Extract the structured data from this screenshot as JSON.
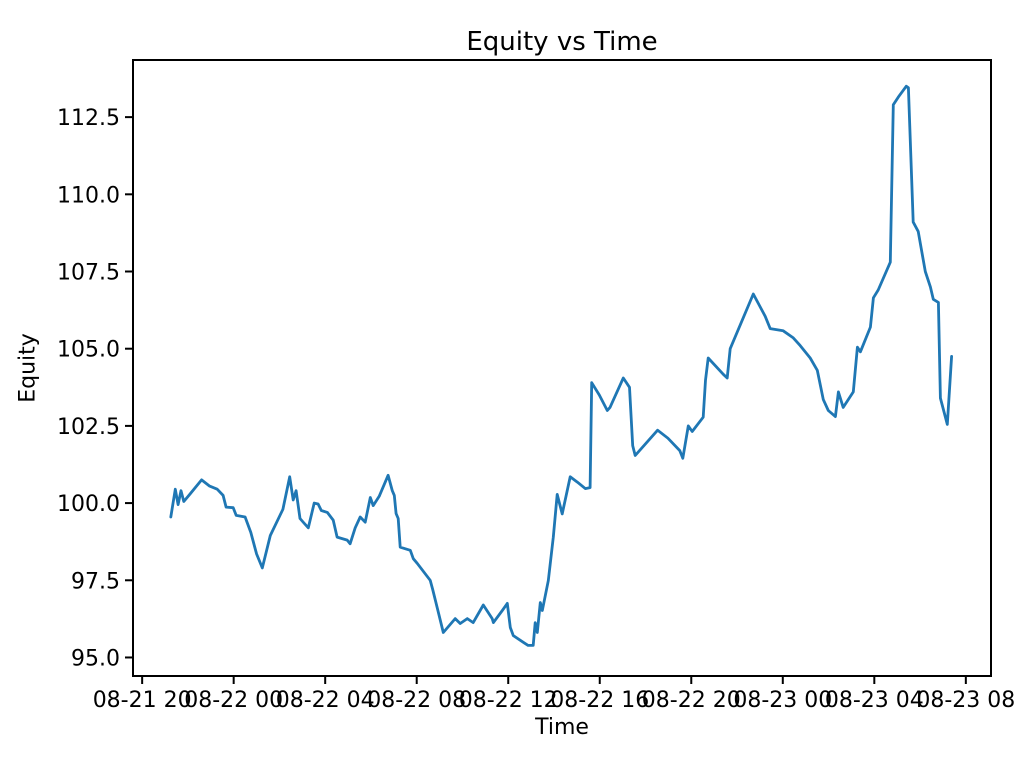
{
  "chart_data": {
    "type": "line",
    "title": "Equity vs Time",
    "xlabel": "Time",
    "ylabel": "Equity",
    "x_unit": "hours since 08-21 20:00",
    "xlim": [
      -0.4,
      37.1
    ],
    "ylim": [
      94.4,
      114.35
    ],
    "grid": false,
    "legend": "none",
    "line_color": "#1f77b4",
    "axis_color": "#000000",
    "x_ticks": [
      {
        "t": 0,
        "label": "08-21 20"
      },
      {
        "t": 4,
        "label": "08-22 00"
      },
      {
        "t": 8,
        "label": "08-22 04"
      },
      {
        "t": 12,
        "label": "08-22 08"
      },
      {
        "t": 16,
        "label": "08-22 12"
      },
      {
        "t": 20,
        "label": "08-22 16"
      },
      {
        "t": 24,
        "label": "08-22 20"
      },
      {
        "t": 28,
        "label": "08-23 00"
      },
      {
        "t": 32,
        "label": "08-23 04"
      },
      {
        "t": 36,
        "label": "08-23 08"
      }
    ],
    "y_ticks": [
      {
        "v": 95.0,
        "label": "95.0"
      },
      {
        "v": 97.5,
        "label": "97.5"
      },
      {
        "v": 100.0,
        "label": "100.0"
      },
      {
        "v": 102.5,
        "label": "102.5"
      },
      {
        "v": 105.0,
        "label": "105.0"
      },
      {
        "v": 107.5,
        "label": "107.5"
      },
      {
        "v": 110.0,
        "label": "110.0"
      },
      {
        "v": 112.5,
        "label": "112.5"
      }
    ],
    "series": [
      {
        "name": "Equity",
        "points": [
          [
            1.25,
            99.55
          ],
          [
            1.45,
            100.45
          ],
          [
            1.57,
            99.95
          ],
          [
            1.7,
            100.4
          ],
          [
            1.82,
            100.05
          ],
          [
            2.1,
            100.3
          ],
          [
            2.6,
            100.75
          ],
          [
            2.95,
            100.55
          ],
          [
            3.28,
            100.45
          ],
          [
            3.54,
            100.25
          ],
          [
            3.67,
            99.87
          ],
          [
            3.98,
            99.85
          ],
          [
            4.11,
            99.6
          ],
          [
            4.5,
            99.55
          ],
          [
            4.75,
            99.05
          ],
          [
            5.0,
            98.35
          ],
          [
            5.25,
            97.9
          ],
          [
            5.6,
            98.95
          ],
          [
            6.15,
            99.8
          ],
          [
            6.45,
            100.85
          ],
          [
            6.6,
            100.1
          ],
          [
            6.73,
            100.4
          ],
          [
            6.9,
            99.5
          ],
          [
            7.05,
            99.37
          ],
          [
            7.26,
            99.2
          ],
          [
            7.52,
            100.0
          ],
          [
            7.69,
            99.97
          ],
          [
            7.83,
            99.76
          ],
          [
            8.09,
            99.7
          ],
          [
            8.35,
            99.45
          ],
          [
            8.52,
            98.9
          ],
          [
            8.96,
            98.8
          ],
          [
            9.09,
            98.68
          ],
          [
            9.31,
            99.2
          ],
          [
            9.53,
            99.55
          ],
          [
            9.75,
            99.38
          ],
          [
            9.97,
            100.18
          ],
          [
            10.1,
            99.92
          ],
          [
            10.36,
            100.22
          ],
          [
            10.75,
            100.9
          ],
          [
            10.93,
            100.41
          ],
          [
            11.02,
            100.25
          ],
          [
            11.1,
            99.66
          ],
          [
            11.19,
            99.5
          ],
          [
            11.28,
            98.57
          ],
          [
            11.72,
            98.47
          ],
          [
            11.85,
            98.2
          ],
          [
            12.02,
            98.05
          ],
          [
            12.59,
            97.5
          ],
          [
            12.7,
            97.2
          ],
          [
            12.9,
            96.6
          ],
          [
            13.16,
            95.81
          ],
          [
            13.68,
            96.26
          ],
          [
            13.9,
            96.1
          ],
          [
            14.21,
            96.26
          ],
          [
            14.47,
            96.13
          ],
          [
            14.91,
            96.7
          ],
          [
            15.3,
            96.26
          ],
          [
            15.35,
            96.13
          ],
          [
            15.74,
            96.52
          ],
          [
            15.96,
            96.75
          ],
          [
            16.09,
            95.97
          ],
          [
            16.22,
            95.71
          ],
          [
            16.66,
            95.49
          ],
          [
            16.87,
            95.39
          ],
          [
            17.09,
            95.39
          ],
          [
            17.18,
            96.13
          ],
          [
            17.27,
            95.81
          ],
          [
            17.4,
            96.78
          ],
          [
            17.49,
            96.52
          ],
          [
            17.75,
            97.49
          ],
          [
            17.97,
            98.9
          ],
          [
            18.14,
            100.28
          ],
          [
            18.36,
            99.65
          ],
          [
            18.71,
            100.85
          ],
          [
            19.02,
            100.68
          ],
          [
            19.37,
            100.47
          ],
          [
            19.58,
            100.5
          ],
          [
            19.65,
            103.9
          ],
          [
            19.98,
            103.5
          ],
          [
            20.33,
            103.0
          ],
          [
            20.45,
            103.1
          ],
          [
            21.03,
            104.05
          ],
          [
            21.3,
            103.75
          ],
          [
            21.44,
            101.86
          ],
          [
            21.55,
            101.54
          ],
          [
            22.53,
            102.36
          ],
          [
            22.98,
            102.1
          ],
          [
            23.5,
            101.7
          ],
          [
            23.63,
            101.45
          ],
          [
            23.87,
            102.5
          ],
          [
            24.04,
            102.32
          ],
          [
            24.52,
            102.78
          ],
          [
            24.62,
            103.98
          ],
          [
            24.74,
            104.7
          ],
          [
            25.4,
            104.17
          ],
          [
            25.57,
            104.05
          ],
          [
            25.7,
            105.0
          ],
          [
            26.71,
            106.77
          ],
          [
            27.23,
            106.05
          ],
          [
            27.45,
            105.65
          ],
          [
            28.02,
            105.58
          ],
          [
            28.46,
            105.35
          ],
          [
            28.76,
            105.1
          ],
          [
            29.2,
            104.7
          ],
          [
            29.51,
            104.3
          ],
          [
            29.77,
            103.35
          ],
          [
            29.99,
            103.0
          ],
          [
            30.3,
            102.8
          ],
          [
            30.43,
            103.6
          ],
          [
            30.64,
            103.1
          ],
          [
            31.08,
            103.6
          ],
          [
            31.26,
            105.05
          ],
          [
            31.39,
            104.9
          ],
          [
            31.83,
            105.7
          ],
          [
            31.96,
            106.65
          ],
          [
            32.17,
            106.9
          ],
          [
            32.7,
            107.8
          ],
          [
            32.83,
            112.9
          ],
          [
            33.05,
            113.15
          ],
          [
            33.4,
            113.5
          ],
          [
            33.49,
            113.45
          ],
          [
            33.7,
            109.1
          ],
          [
            33.92,
            108.8
          ],
          [
            34.23,
            107.5
          ],
          [
            34.45,
            107.0
          ],
          [
            34.58,
            106.6
          ],
          [
            34.8,
            106.5
          ],
          [
            34.89,
            103.4
          ],
          [
            35.19,
            102.55
          ],
          [
            35.38,
            104.75
          ]
        ]
      }
    ]
  }
}
